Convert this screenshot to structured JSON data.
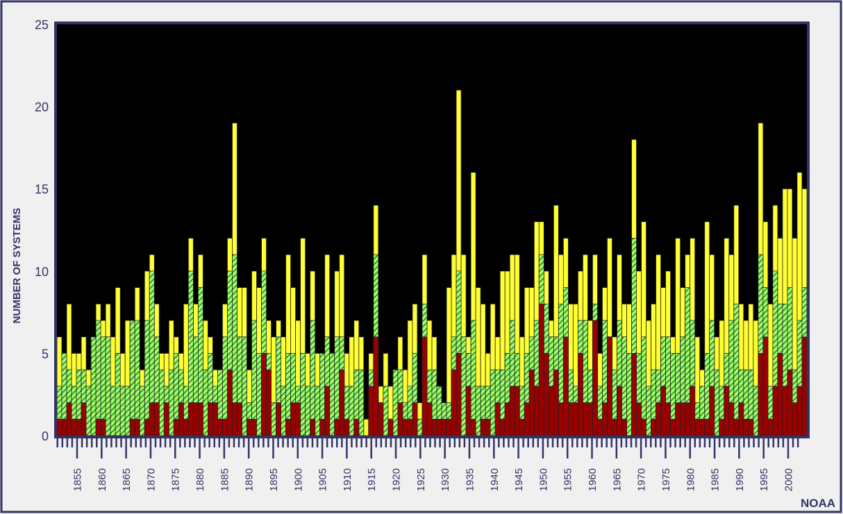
{
  "credit": "NOAA",
  "chart_data": {
    "type": "bar",
    "layout": "overlaid",
    "title": "",
    "xlabel": "",
    "ylabel": "NUMBER OF SYSTEMS",
    "ylim": [
      0,
      25
    ],
    "yticks": [
      0,
      5,
      10,
      15,
      20,
      25
    ],
    "xlim": [
      1851,
      2004
    ],
    "xtick_labels": [
      "1855",
      "1860",
      "1865",
      "1870",
      "1875",
      "1880",
      "1885",
      "1890",
      "1895",
      "1900",
      "1905",
      "1910",
      "1915",
      "1920",
      "1925",
      "1930",
      "1935",
      "1940",
      "1945",
      "1950",
      "1955",
      "1960",
      "1965",
      "1970",
      "1975",
      "1980",
      "1985",
      "1990",
      "1995",
      "2000"
    ],
    "grid": false,
    "legend": "none",
    "background": "#000000",
    "categories_start": 1851,
    "categories_end": 2004,
    "series": [
      {
        "color": "#ffff33",
        "hatched": false,
        "values": [
          6,
          5,
          8,
          5,
          5,
          6,
          4,
          6,
          8,
          7,
          8,
          6,
          9,
          5,
          7,
          7,
          9,
          4,
          10,
          11,
          8,
          5,
          5,
          7,
          6,
          5,
          8,
          12,
          8,
          11,
          7,
          6,
          4,
          4,
          8,
          12,
          19,
          9,
          9,
          4,
          10,
          9,
          12,
          7,
          6,
          7,
          6,
          11,
          9,
          7,
          12,
          5,
          10,
          5,
          5,
          11,
          5,
          10,
          11,
          5,
          6,
          7,
          6,
          1,
          5,
          14,
          3,
          5,
          3,
          4,
          6,
          4,
          7,
          8,
          2,
          11,
          7,
          6,
          3,
          2,
          9,
          11,
          21,
          11,
          6,
          16,
          9,
          8,
          5,
          8,
          6,
          10,
          10,
          11,
          11,
          6,
          9,
          9,
          13,
          13,
          10,
          7,
          14,
          11,
          12,
          8,
          8,
          10,
          11,
          7,
          11,
          5,
          9,
          12,
          6,
          11,
          8,
          8,
          18,
          10,
          13,
          7,
          8,
          11,
          9,
          10,
          6,
          12,
          9,
          11,
          12,
          6,
          4,
          13,
          11,
          6,
          7,
          12,
          11,
          14,
          8,
          7,
          8,
          7,
          19,
          13,
          8,
          14,
          12,
          15,
          15,
          12,
          16,
          15
        ]
      },
      {
        "color": "#99ff66",
        "hatched": true,
        "values": [
          3,
          5,
          4,
          3,
          4,
          4,
          3,
          6,
          7,
          6,
          6,
          3,
          5,
          3,
          3,
          7,
          7,
          3,
          7,
          10,
          6,
          4,
          3,
          4,
          5,
          4,
          3,
          10,
          6,
          9,
          4,
          5,
          3,
          4,
          6,
          10,
          11,
          6,
          6,
          2,
          7,
          5,
          10,
          5,
          2,
          6,
          3,
          5,
          5,
          3,
          5,
          3,
          7,
          3,
          5,
          6,
          5,
          6,
          6,
          3,
          3,
          4,
          4,
          0,
          4,
          11,
          2,
          3,
          1,
          4,
          4,
          2,
          3,
          5,
          1,
          8,
          4,
          4,
          3,
          2,
          2,
          6,
          10,
          6,
          5,
          7,
          3,
          3,
          3,
          4,
          4,
          4,
          5,
          7,
          5,
          3,
          5,
          6,
          7,
          11,
          8,
          6,
          6,
          8,
          9,
          4,
          3,
          7,
          7,
          4,
          8,
          3,
          7,
          6,
          4,
          7,
          6,
          5,
          12,
          5,
          6,
          3,
          4,
          4,
          6,
          6,
          5,
          5,
          6,
          9,
          7,
          2,
          3,
          5,
          7,
          4,
          3,
          5,
          7,
          8,
          4,
          4,
          4,
          3,
          11,
          9,
          3,
          10,
          8,
          8,
          9,
          4,
          7,
          9
        ]
      },
      {
        "color": "#990000",
        "hatched": false,
        "values": [
          1,
          1,
          2,
          1,
          1,
          2,
          0,
          0,
          1,
          1,
          0,
          0,
          0,
          0,
          0,
          1,
          1,
          0,
          1,
          2,
          2,
          0,
          2,
          0,
          1,
          2,
          1,
          2,
          2,
          2,
          0,
          2,
          2,
          1,
          1,
          4,
          2,
          2,
          0,
          1,
          1,
          0,
          5,
          4,
          0,
          2,
          0,
          1,
          2,
          2,
          0,
          0,
          1,
          0,
          1,
          3,
          0,
          1,
          4,
          1,
          0,
          1,
          0,
          0,
          3,
          6,
          2,
          0,
          1,
          0,
          2,
          1,
          1,
          2,
          0,
          6,
          2,
          1,
          1,
          1,
          1,
          4,
          5,
          0,
          3,
          1,
          0,
          1,
          1,
          0,
          2,
          1,
          2,
          3,
          3,
          1,
          2,
          4,
          3,
          8,
          5,
          3,
          4,
          2,
          6,
          2,
          2,
          5,
          2,
          2,
          7,
          1,
          2,
          6,
          1,
          3,
          1,
          0,
          5,
          2,
          1,
          0,
          1,
          2,
          3,
          2,
          1,
          2,
          2,
          2,
          3,
          1,
          1,
          1,
          3,
          0,
          1,
          3,
          2,
          1,
          2,
          1,
          1,
          0,
          5,
          6,
          1,
          3,
          5,
          3,
          4,
          2,
          3,
          6
        ]
      }
    ],
    "axis_color": "#333366"
  }
}
